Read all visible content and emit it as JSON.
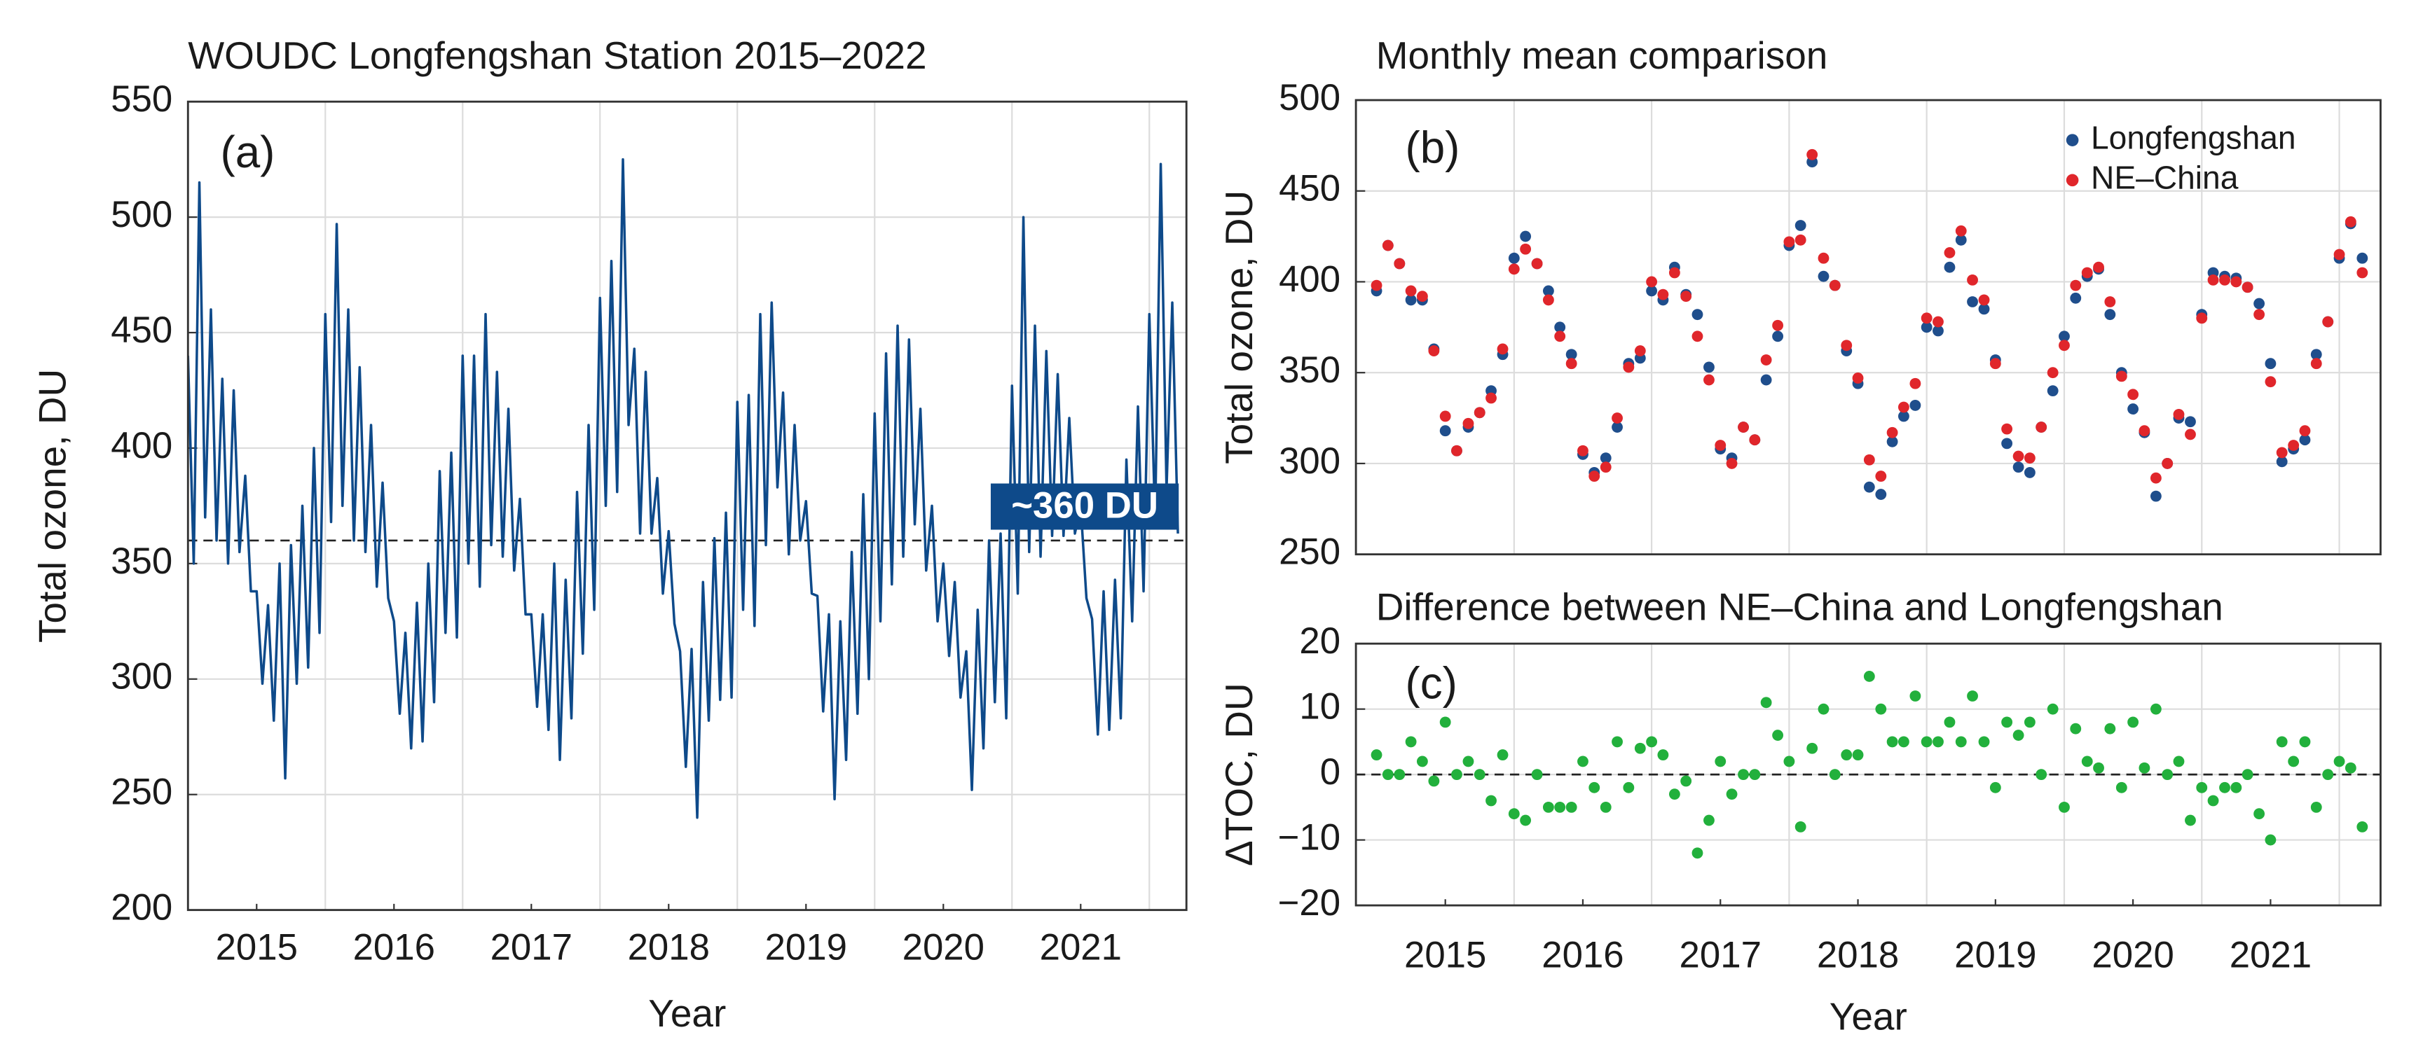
{
  "chart_data": [
    {
      "type": "line",
      "title": "WOUDC  Longfengshan Station  2015–2022",
      "panel_label": "(a)",
      "xlabel": "Year",
      "ylabel": "Total ozone, DU",
      "x": [
        2015,
        2015.042,
        2015.083,
        2015.125,
        2015.167,
        2015.208,
        2015.25,
        2015.292,
        2015.333,
        2015.375,
        2015.417,
        2015.458,
        2015.5,
        2015.542,
        2015.583,
        2015.625,
        2015.667,
        2015.708,
        2015.75,
        2015.792,
        2015.833,
        2015.875,
        2015.917,
        2015.958,
        2016,
        2016.042,
        2016.083,
        2016.125,
        2016.167,
        2016.208,
        2016.25,
        2016.292,
        2016.333,
        2016.375,
        2016.417,
        2016.458,
        2016.5,
        2016.542,
        2016.583,
        2016.625,
        2016.667,
        2016.708,
        2016.75,
        2016.792,
        2016.833,
        2016.875,
        2016.917,
        2016.958,
        2017,
        2017.042,
        2017.083,
        2017.125,
        2017.167,
        2017.208,
        2017.25,
        2017.292,
        2017.333,
        2017.375,
        2017.417,
        2017.458,
        2017.5,
        2017.542,
        2017.583,
        2017.625,
        2017.667,
        2017.708,
        2017.75,
        2017.792,
        2017.833,
        2017.875,
        2017.917,
        2017.958,
        2018,
        2018.042,
        2018.083,
        2018.125,
        2018.167,
        2018.208,
        2018.25,
        2018.292,
        2018.333,
        2018.375,
        2018.417,
        2018.458,
        2018.5,
        2018.542,
        2018.583,
        2018.625,
        2018.667,
        2018.708,
        2018.75,
        2018.792,
        2018.833,
        2018.875,
        2018.917,
        2018.958,
        2019,
        2019.042,
        2019.083,
        2019.125,
        2019.167,
        2019.208,
        2019.25,
        2019.292,
        2019.333,
        2019.375,
        2019.417,
        2019.458,
        2019.5,
        2019.542,
        2019.583,
        2019.625,
        2019.667,
        2019.708,
        2019.75,
        2019.792,
        2019.833,
        2019.875,
        2019.917,
        2019.958,
        2020,
        2020.042,
        2020.083,
        2020.125,
        2020.167,
        2020.208,
        2020.25,
        2020.292,
        2020.333,
        2020.375,
        2020.417,
        2020.458,
        2020.5,
        2020.542,
        2020.583,
        2020.625,
        2020.667,
        2020.708,
        2020.75,
        2020.792,
        2020.833,
        2020.875,
        2020.917,
        2020.958,
        2021,
        2021.042,
        2021.083,
        2021.125,
        2021.167,
        2021.208,
        2021.25,
        2021.292,
        2021.333,
        2021.375,
        2021.417,
        2021.458,
        2021.5,
        2021.542,
        2021.583,
        2021.625,
        2021.667,
        2021.708,
        2021.75,
        2021.792,
        2021.833,
        2021.875,
        2021.917,
        2021.958,
        2022,
        2022.042,
        2022.083,
        2022.125,
        2022.167,
        2022.208
      ],
      "series": [
        {
          "color": "#0e4a8a",
          "values": [
            440,
            350,
            515,
            370,
            460,
            360,
            430,
            350,
            425,
            355,
            388,
            338,
            338,
            298,
            332,
            282,
            350,
            257,
            358,
            298,
            375,
            305,
            400,
            320,
            458,
            368,
            497,
            375,
            460,
            360,
            435,
            355,
            410,
            340,
            385,
            335,
            325,
            285,
            320,
            270,
            333,
            273,
            350,
            290,
            390,
            320,
            398,
            318,
            440,
            350,
            440,
            340,
            458,
            358,
            433,
            353,
            417,
            347,
            378,
            328,
            328,
            288,
            328,
            278,
            350,
            265,
            343,
            283,
            381,
            311,
            410,
            330,
            465,
            375,
            481,
            381,
            525,
            410,
            443,
            363,
            433,
            363,
            387,
            337,
            364,
            324,
            312,
            262,
            313,
            240,
            342,
            282,
            361,
            291,
            372,
            292,
            420,
            330,
            423,
            323,
            458,
            358,
            463,
            383,
            424,
            354,
            410,
            360,
            377,
            337,
            336,
            286,
            328,
            248,
            325,
            265,
            355,
            285,
            380,
            300,
            415,
            325,
            441,
            341,
            453,
            353,
            447,
            367,
            417,
            347,
            375,
            325,
            350,
            310,
            342,
            292,
            312,
            252,
            330,
            270,
            360,
            290,
            363,
            283,
            427,
            337,
            500,
            355,
            453,
            353,
            442,
            362,
            432,
            362,
            413,
            363,
            375,
            335,
            326,
            276,
            338,
            278,
            343,
            283,
            395,
            325,
            418,
            338,
            458,
            368,
            523,
            382,
            463,
            363
          ]
        }
      ],
      "xlim": [
        2015,
        2022.27
      ],
      "ylim": [
        200,
        550
      ],
      "yticks": [
        200,
        250,
        300,
        350,
        400,
        450,
        500,
        550
      ],
      "xticks": [
        {
          "value": 2015.5,
          "label": "2015"
        },
        {
          "value": 2016.5,
          "label": "2016"
        },
        {
          "value": 2017.5,
          "label": "2017"
        },
        {
          "value": 2018.5,
          "label": "2018"
        },
        {
          "value": 2019.5,
          "label": "2019"
        },
        {
          "value": 2020.5,
          "label": "2020"
        },
        {
          "value": 2021.5,
          "label": "2021"
        }
      ],
      "xgridlines": [
        2016,
        2017,
        2018,
        2019,
        2020,
        2021,
        2022
      ],
      "grid": true,
      "hline": {
        "value": 360,
        "label": "~360 DU"
      }
    },
    {
      "type": "scatter",
      "title": "Monthly mean comparison",
      "panel_label": "(b)",
      "ylabel": "Total ozone, DU",
      "x": [
        2015,
        2015.083,
        2015.167,
        2015.25,
        2015.333,
        2015.417,
        2015.5,
        2015.583,
        2015.667,
        2015.75,
        2015.833,
        2015.917,
        2016,
        2016.083,
        2016.167,
        2016.25,
        2016.333,
        2016.417,
        2016.5,
        2016.583,
        2016.667,
        2016.75,
        2016.833,
        2016.917,
        2017,
        2017.083,
        2017.167,
        2017.25,
        2017.333,
        2017.417,
        2017.5,
        2017.583,
        2017.667,
        2017.75,
        2017.833,
        2017.917,
        2018,
        2018.083,
        2018.167,
        2018.25,
        2018.333,
        2018.417,
        2018.5,
        2018.583,
        2018.667,
        2018.75,
        2018.833,
        2018.917,
        2019,
        2019.083,
        2019.167,
        2019.25,
        2019.333,
        2019.417,
        2019.5,
        2019.583,
        2019.667,
        2019.75,
        2019.833,
        2019.917,
        2020,
        2020.083,
        2020.167,
        2020.25,
        2020.333,
        2020.417,
        2020.5,
        2020.583,
        2020.667,
        2020.75,
        2020.833,
        2020.917,
        2021,
        2021.083,
        2021.167,
        2021.25,
        2021.333,
        2021.417,
        2021.5,
        2021.583,
        2021.667,
        2021.75,
        2021.833,
        2021.917,
        2022,
        2022.083,
        2022.167
      ],
      "series": [
        {
          "name": "Longfengshan",
          "color": "#1f4e8c",
          "values": [
            395,
            420,
            410,
            390,
            390,
            363,
            318,
            307,
            320,
            328,
            340,
            360,
            413,
            425,
            410,
            395,
            375,
            360,
            305,
            295,
            303,
            320,
            355,
            358,
            395,
            390,
            408,
            393,
            382,
            353,
            308,
            303,
            320,
            313,
            346,
            370,
            420,
            431,
            466,
            403,
            398,
            362,
            344,
            287,
            283,
            312,
            326,
            332,
            375,
            373,
            408,
            423,
            389,
            385,
            357,
            311,
            298,
            295,
            320,
            340,
            370,
            391,
            403,
            407,
            382,
            350,
            330,
            317,
            282,
            300,
            325,
            323,
            382,
            405,
            403,
            402,
            397,
            388,
            355,
            301,
            308,
            313,
            360,
            378,
            413,
            432,
            413
          ]
        },
        {
          "name": "NE–China",
          "color": "#e0262b",
          "values": [
            398,
            420,
            410,
            395,
            392,
            362,
            326,
            307,
            322,
            328,
            336,
            363,
            407,
            418,
            410,
            390,
            370,
            355,
            307,
            293,
            298,
            325,
            353,
            362,
            400,
            393,
            405,
            392,
            370,
            346,
            310,
            300,
            320,
            313,
            357,
            376,
            422,
            423,
            470,
            413,
            398,
            365,
            347,
            302,
            293,
            317,
            331,
            344,
            380,
            378,
            416,
            428,
            401,
            390,
            355,
            319,
            304,
            303,
            320,
            350,
            365,
            398,
            405,
            408,
            389,
            348,
            338,
            318,
            292,
            300,
            327,
            316,
            380,
            401,
            401,
            400,
            397,
            382,
            345,
            306,
            310,
            318,
            355,
            378,
            415,
            433,
            405
          ]
        }
      ],
      "xlim": [
        2014.85,
        2022.3
      ],
      "ylim": [
        250,
        500
      ],
      "yticks": [
        250,
        300,
        350,
        400,
        450,
        500
      ],
      "xgridlines": [
        2016,
        2017,
        2018,
        2019,
        2020,
        2021,
        2022
      ],
      "grid": true,
      "legend": "upper right"
    },
    {
      "type": "scatter",
      "title": "Difference between NE–China and Longfengshan",
      "panel_label": "(c)",
      "xlabel": "Year",
      "ylabel": "ΔTOC, DU",
      "x": [
        2015,
        2015.083,
        2015.167,
        2015.25,
        2015.333,
        2015.417,
        2015.5,
        2015.583,
        2015.667,
        2015.75,
        2015.833,
        2015.917,
        2016,
        2016.083,
        2016.167,
        2016.25,
        2016.333,
        2016.417,
        2016.5,
        2016.583,
        2016.667,
        2016.75,
        2016.833,
        2016.917,
        2017,
        2017.083,
        2017.167,
        2017.25,
        2017.333,
        2017.417,
        2017.5,
        2017.583,
        2017.667,
        2017.75,
        2017.833,
        2017.917,
        2018,
        2018.083,
        2018.167,
        2018.25,
        2018.333,
        2018.417,
        2018.5,
        2018.583,
        2018.667,
        2018.75,
        2018.833,
        2018.917,
        2019,
        2019.083,
        2019.167,
        2019.25,
        2019.333,
        2019.417,
        2019.5,
        2019.583,
        2019.667,
        2019.75,
        2019.833,
        2019.917,
        2020,
        2020.083,
        2020.167,
        2020.25,
        2020.333,
        2020.417,
        2020.5,
        2020.583,
        2020.667,
        2020.75,
        2020.833,
        2020.917,
        2021,
        2021.083,
        2021.167,
        2021.25,
        2021.333,
        2021.417,
        2021.5,
        2021.583,
        2021.667,
        2021.75,
        2021.833,
        2021.917,
        2022,
        2022.083,
        2022.167
      ],
      "series": [
        {
          "color": "#22b03c",
          "values": [
            3,
            0,
            0,
            5,
            2,
            -1,
            8,
            0,
            2,
            0,
            -4,
            3,
            -6,
            -7,
            0,
            -5,
            -5,
            -5,
            2,
            -2,
            -5,
            5,
            -2,
            4,
            5,
            3,
            -3,
            -1,
            -12,
            -7,
            2,
            -3,
            0,
            0,
            11,
            6,
            2,
            -8,
            4,
            10,
            0,
            3,
            3,
            15,
            10,
            5,
            5,
            12,
            5,
            5,
            8,
            5,
            12,
            5,
            -2,
            8,
            6,
            8,
            0,
            10,
            -5,
            7,
            2,
            1,
            7,
            -2,
            8,
            1,
            10,
            0,
            2,
            -7,
            -2,
            -4,
            -2,
            -2,
            0,
            -6,
            -10,
            5,
            2,
            5,
            -5,
            0,
            2,
            1,
            -8
          ]
        }
      ],
      "xlim": [
        2014.85,
        2022.3
      ],
      "ylim": [
        -20,
        20
      ],
      "yticks": [
        {
          "value": -20,
          "label": "−20"
        },
        {
          "value": -10,
          "label": "−10"
        },
        0,
        10,
        20
      ],
      "xticks": [
        {
          "value": 2015.5,
          "label": "2015"
        },
        {
          "value": 2016.5,
          "label": "2016"
        },
        {
          "value": 2017.5,
          "label": "2017"
        },
        {
          "value": 2018.5,
          "label": "2018"
        },
        {
          "value": 2019.5,
          "label": "2019"
        },
        {
          "value": 2020.5,
          "label": "2020"
        },
        {
          "value": 2021.5,
          "label": "2021"
        }
      ],
      "xgridlines": [
        2016,
        2017,
        2018,
        2019,
        2020,
        2021,
        2022
      ],
      "grid": true,
      "hline": 0
    }
  ]
}
